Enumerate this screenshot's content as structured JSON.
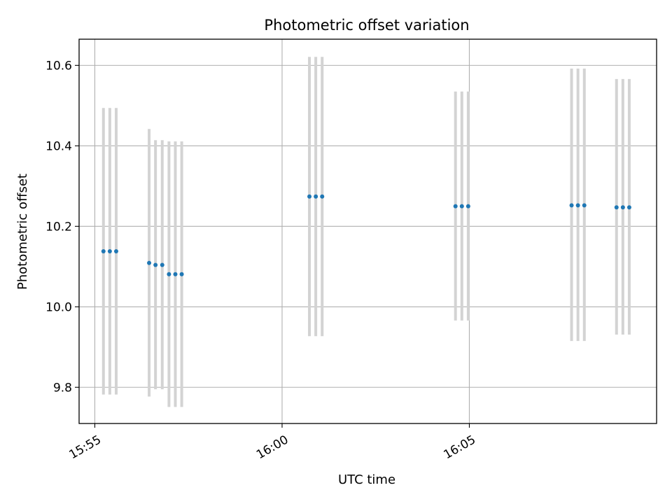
{
  "chart_data": {
    "type": "scatter",
    "title": "Photometric offset variation",
    "xlabel": "UTC time",
    "ylabel": "Photometric offset",
    "grid": true,
    "x_axis": {
      "unit": "minutes after 15:55 UTC",
      "ticks": [
        {
          "value": 0,
          "label": "15:55"
        },
        {
          "value": 5,
          "label": "16:00"
        },
        {
          "value": 10,
          "label": "16:05"
        }
      ],
      "xlim": [
        -0.42,
        15.0
      ]
    },
    "y_axis": {
      "ticks": [
        {
          "value": 9.8,
          "label": "9.8"
        },
        {
          "value": 10.0,
          "label": "10.0"
        },
        {
          "value": 10.2,
          "label": "10.2"
        },
        {
          "value": 10.4,
          "label": "10.4"
        },
        {
          "value": 10.6,
          "label": "10.6"
        }
      ],
      "ylim": [
        9.71,
        10.665
      ]
    },
    "point_color": "#1f77b4",
    "errorbar_color": "#d3d3d3",
    "series": [
      {
        "points": [
          {
            "x": 0.23,
            "y": 10.138,
            "ylow": 9.782,
            "yhigh": 10.494
          },
          {
            "x": 0.4,
            "y": 10.138,
            "ylow": 9.782,
            "yhigh": 10.494
          },
          {
            "x": 0.57,
            "y": 10.138,
            "ylow": 9.782,
            "yhigh": 10.494
          },
          {
            "x": 1.45,
            "y": 10.109,
            "ylow": 9.777,
            "yhigh": 10.442
          },
          {
            "x": 1.62,
            "y": 10.104,
            "ylow": 9.795,
            "yhigh": 10.414
          },
          {
            "x": 1.8,
            "y": 10.104,
            "ylow": 9.795,
            "yhigh": 10.414
          },
          {
            "x": 1.98,
            "y": 10.081,
            "ylow": 9.751,
            "yhigh": 10.411
          },
          {
            "x": 2.15,
            "y": 10.081,
            "ylow": 9.751,
            "yhigh": 10.411
          },
          {
            "x": 2.32,
            "y": 10.081,
            "ylow": 9.751,
            "yhigh": 10.411
          },
          {
            "x": 5.73,
            "y": 10.274,
            "ylow": 9.927,
            "yhigh": 10.621
          },
          {
            "x": 5.9,
            "y": 10.274,
            "ylow": 9.927,
            "yhigh": 10.621
          },
          {
            "x": 6.07,
            "y": 10.274,
            "ylow": 9.927,
            "yhigh": 10.621
          },
          {
            "x": 9.63,
            "y": 10.25,
            "ylow": 9.966,
            "yhigh": 10.535
          },
          {
            "x": 9.8,
            "y": 10.25,
            "ylow": 9.966,
            "yhigh": 10.535
          },
          {
            "x": 9.97,
            "y": 10.25,
            "ylow": 9.966,
            "yhigh": 10.535
          },
          {
            "x": 12.73,
            "y": 10.252,
            "ylow": 9.915,
            "yhigh": 10.592
          },
          {
            "x": 12.9,
            "y": 10.252,
            "ylow": 9.915,
            "yhigh": 10.592
          },
          {
            "x": 13.07,
            "y": 10.252,
            "ylow": 9.915,
            "yhigh": 10.592
          },
          {
            "x": 13.93,
            "y": 10.247,
            "ylow": 9.931,
            "yhigh": 10.566
          },
          {
            "x": 14.1,
            "y": 10.247,
            "ylow": 9.931,
            "yhigh": 10.566
          },
          {
            "x": 14.27,
            "y": 10.247,
            "ylow": 9.931,
            "yhigh": 10.566
          }
        ]
      }
    ]
  }
}
